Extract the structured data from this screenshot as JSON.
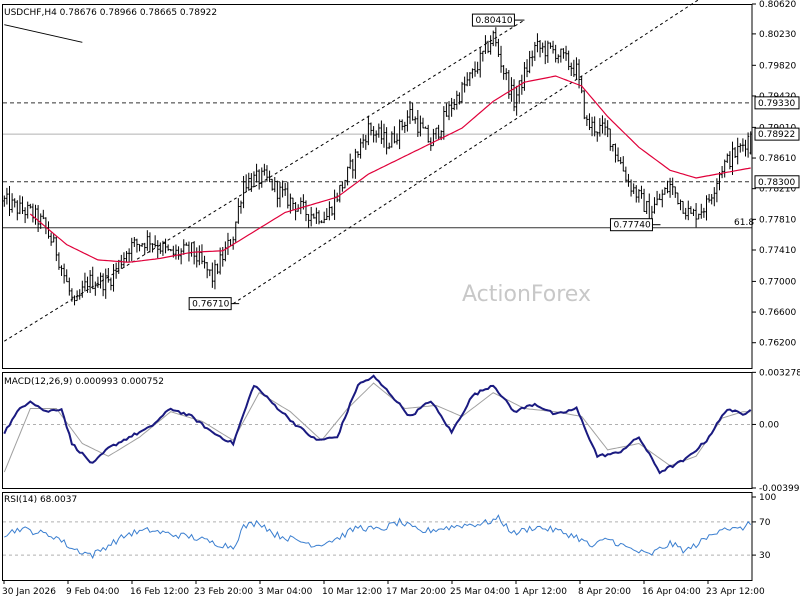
{
  "header": {
    "title": "USDCHF,H4  0.78676 0.78966 0.78665 0.78922"
  },
  "watermark": "ActionForex",
  "colors": {
    "bar": "#000000",
    "ma": "#e0003a",
    "macd": "#1a1a80",
    "signal": "#a0a0a0",
    "rsi": "#3b7fd0",
    "grid": "#808080"
  },
  "chart_data": [
    {
      "type": "ohlc",
      "series_name": "USDCHF,H4",
      "last_bar": {
        "open": 0.78676,
        "high": 0.78966,
        "low": 0.78665,
        "close": 0.78922
      },
      "ylim": [
        0.7587,
        0.8062
      ],
      "yticks": [
        "0.80620",
        "0.80230",
        "0.79820",
        "0.79420",
        "0.79010",
        "0.78610",
        "0.78210",
        "0.77810",
        "0.77410",
        "0.77000",
        "0.76600",
        "0.76200"
      ],
      "xticks": [
        "30 Jan 2026",
        "9 Feb 04:00",
        "16 Feb 12:00",
        "23 Feb 20:00",
        "3 Mar 04:00",
        "10 Mar 12:00",
        "17 Mar 20:00",
        "25 Mar 04:00",
        "1 Apr 12:00",
        "8 Apr 20:00",
        "16 Apr 04:00",
        "23 Apr 12:00"
      ],
      "close_anchors": [
        [
          0,
          0.7805
        ],
        [
          5,
          0.7795
        ],
        [
          10,
          0.779
        ],
        [
          15,
          0.7775
        ],
        [
          20,
          0.774
        ],
        [
          27,
          0.7665
        ],
        [
          32,
          0.77
        ],
        [
          40,
          0.77
        ],
        [
          48,
          0.7745
        ],
        [
          56,
          0.7755
        ],
        [
          64,
          0.7735
        ],
        [
          72,
          0.774
        ],
        [
          80,
          0.7705
        ],
        [
          88,
          0.776
        ],
        [
          92,
          0.783
        ],
        [
          100,
          0.7835
        ],
        [
          108,
          0.781
        ],
        [
          116,
          0.779
        ],
        [
          124,
          0.7785
        ],
        [
          132,
          0.784
        ],
        [
          140,
          0.79
        ],
        [
          148,
          0.788
        ],
        [
          156,
          0.792
        ],
        [
          164,
          0.788
        ],
        [
          172,
          0.793
        ],
        [
          180,
          0.797
        ],
        [
          188,
          0.802
        ],
        [
          192,
          0.7975
        ],
        [
          196,
          0.7935
        ],
        [
          204,
          0.8005
        ],
        [
          212,
          0.8
        ],
        [
          220,
          0.7975
        ],
        [
          224,
          0.7905
        ],
        [
          232,
          0.7895
        ],
        [
          240,
          0.783
        ],
        [
          248,
          0.779
        ],
        [
          256,
          0.7825
        ],
        [
          264,
          0.7785
        ],
        [
          270,
          0.78
        ],
        [
          276,
          0.785
        ],
        [
          282,
          0.787
        ],
        [
          287,
          0.7892
        ]
      ],
      "ma_anchors": [
        [
          10,
          0.7788
        ],
        [
          24,
          0.7748
        ],
        [
          36,
          0.7728
        ],
        [
          48,
          0.7725
        ],
        [
          60,
          0.773
        ],
        [
          72,
          0.7738
        ],
        [
          84,
          0.774
        ],
        [
          96,
          0.7765
        ],
        [
          108,
          0.779
        ],
        [
          120,
          0.7802
        ],
        [
          128,
          0.781
        ],
        [
          140,
          0.784
        ],
        [
          152,
          0.786
        ],
        [
          164,
          0.788
        ],
        [
          176,
          0.79
        ],
        [
          188,
          0.7935
        ],
        [
          200,
          0.796
        ],
        [
          212,
          0.7968
        ],
        [
          222,
          0.7955
        ],
        [
          232,
          0.7915
        ],
        [
          244,
          0.7875
        ],
        [
          256,
          0.7845
        ],
        [
          266,
          0.7835
        ],
        [
          274,
          0.784
        ],
        [
          287,
          0.7848
        ]
      ],
      "high_labels": [
        "0.80410"
      ],
      "low_labels": [
        "0.76710",
        "0.77740"
      ],
      "level_labels": [
        "0.79330",
        "0.78922",
        "0.78300",
        "61.8"
      ],
      "levels_values": {
        "r1": 0.7933,
        "current": 0.78922,
        "s1": 0.783,
        "fib": 0.777
      },
      "annotations": [
        {
          "text": "0.80410",
          "bar": 200,
          "value": 0.8041,
          "kind": "high"
        },
        {
          "text": "0.76710",
          "bar": 88,
          "value": 0.7671,
          "kind": "low"
        },
        {
          "text": "0.77740",
          "bar": 250,
          "value": 0.7774,
          "kind": "low"
        }
      ],
      "trendlines": [
        {
          "from": [
            0,
            0.7622
          ],
          "to": [
            200,
            0.8041
          ],
          "style": "dashed"
        },
        {
          "from": [
            88,
            0.7671
          ],
          "to": [
            287,
            0.8112
          ],
          "style": "dashed"
        },
        {
          "from": [
            0,
            0.8035
          ],
          "to": [
            30,
            0.8012
          ],
          "style": "solid"
        }
      ]
    },
    {
      "type": "line",
      "title": "MACD(12,26,9) 0.000993 0.000752",
      "ylim": [
        -0.004,
        0.0033
      ],
      "yticks": [
        "0.003278",
        "0.00",
        "-0.003999"
      ],
      "macd_anchors": [
        [
          0,
          -0.0005
        ],
        [
          6,
          0.001
        ],
        [
          10,
          0.0015
        ],
        [
          16,
          0.0008
        ],
        [
          22,
          0.001
        ],
        [
          26,
          -0.0012
        ],
        [
          34,
          -0.0025
        ],
        [
          40,
          -0.0015
        ],
        [
          48,
          -0.0008
        ],
        [
          56,
          -0.0002
        ],
        [
          64,
          0.001
        ],
        [
          72,
          0.0005
        ],
        [
          80,
          -0.0005
        ],
        [
          88,
          -0.0012
        ],
        [
          96,
          0.0025
        ],
        [
          104,
          0.0012
        ],
        [
          112,
          0.0
        ],
        [
          120,
          -0.001
        ],
        [
          128,
          -0.0008
        ],
        [
          136,
          0.0025
        ],
        [
          142,
          0.003
        ],
        [
          148,
          0.002
        ],
        [
          156,
          0.0005
        ],
        [
          164,
          0.0015
        ],
        [
          172,
          -0.0005
        ],
        [
          180,
          0.0018
        ],
        [
          188,
          0.0025
        ],
        [
          196,
          0.0008
        ],
        [
          204,
          0.0013
        ],
        [
          212,
          0.0006
        ],
        [
          220,
          0.001
        ],
        [
          228,
          -0.002
        ],
        [
          236,
          -0.0018
        ],
        [
          244,
          -0.0008
        ],
        [
          252,
          -0.003
        ],
        [
          262,
          -0.0022
        ],
        [
          270,
          -0.001
        ],
        [
          278,
          0.001
        ],
        [
          284,
          0.0006
        ],
        [
          287,
          0.001
        ]
      ],
      "signal_anchors": [
        [
          0,
          -0.003
        ],
        [
          10,
          0.001
        ],
        [
          20,
          0.001
        ],
        [
          30,
          -0.0012
        ],
        [
          40,
          -0.002
        ],
        [
          52,
          -0.0008
        ],
        [
          64,
          0.0008
        ],
        [
          76,
          0.0002
        ],
        [
          88,
          -0.001
        ],
        [
          98,
          0.002
        ],
        [
          110,
          0.0008
        ],
        [
          122,
          -0.001
        ],
        [
          132,
          0.001
        ],
        [
          142,
          0.0026
        ],
        [
          154,
          0.001
        ],
        [
          166,
          0.0012
        ],
        [
          176,
          0.0005
        ],
        [
          188,
          0.002
        ],
        [
          200,
          0.001
        ],
        [
          212,
          0.0008
        ],
        [
          222,
          0.0005
        ],
        [
          232,
          -0.0016
        ],
        [
          244,
          -0.0012
        ],
        [
          256,
          -0.0026
        ],
        [
          266,
          -0.002
        ],
        [
          276,
          0.0004
        ],
        [
          284,
          0.0008
        ],
        [
          287,
          0.0008
        ]
      ]
    },
    {
      "type": "line",
      "title": "RSI(14) 68.0037",
      "ylim": [
        0,
        100
      ],
      "yticks": [
        "100",
        "70",
        "30",
        "0"
      ],
      "levels": [
        70,
        30
      ],
      "rsi_anchors": [
        [
          0,
          55
        ],
        [
          6,
          62
        ],
        [
          12,
          58
        ],
        [
          20,
          52
        ],
        [
          26,
          38
        ],
        [
          34,
          30
        ],
        [
          40,
          42
        ],
        [
          48,
          56
        ],
        [
          56,
          60
        ],
        [
          64,
          55
        ],
        [
          72,
          52
        ],
        [
          80,
          45
        ],
        [
          88,
          40
        ],
        [
          92,
          64
        ],
        [
          98,
          70
        ],
        [
          104,
          55
        ],
        [
          112,
          48
        ],
        [
          120,
          42
        ],
        [
          128,
          50
        ],
        [
          136,
          64
        ],
        [
          144,
          60
        ],
        [
          152,
          70
        ],
        [
          160,
          58
        ],
        [
          168,
          62
        ],
        [
          176,
          66
        ],
        [
          184,
          68
        ],
        [
          190,
          74
        ],
        [
          196,
          56
        ],
        [
          204,
          64
        ],
        [
          212,
          60
        ],
        [
          220,
          52
        ],
        [
          226,
          40
        ],
        [
          232,
          50
        ],
        [
          240,
          38
        ],
        [
          248,
          30
        ],
        [
          256,
          44
        ],
        [
          262,
          35
        ],
        [
          270,
          50
        ],
        [
          276,
          64
        ],
        [
          282,
          60
        ],
        [
          287,
          68
        ]
      ]
    }
  ]
}
